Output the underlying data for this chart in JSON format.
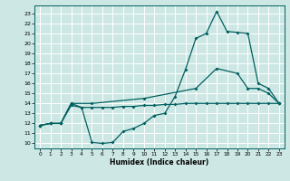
{
  "xlabel": "Humidex (Indice chaleur)",
  "bg_color": "#cde8e4",
  "grid_color": "#ffffff",
  "line_color": "#006060",
  "xlim": [
    -0.5,
    23.5
  ],
  "ylim": [
    9.5,
    23.8
  ],
  "yticks": [
    10,
    11,
    12,
    13,
    14,
    15,
    16,
    17,
    18,
    19,
    20,
    21,
    22,
    23
  ],
  "xticks": [
    0,
    1,
    2,
    3,
    4,
    5,
    6,
    7,
    8,
    9,
    10,
    11,
    12,
    13,
    14,
    15,
    16,
    17,
    18,
    19,
    20,
    21,
    22,
    23
  ],
  "line1_x": [
    0,
    1,
    2,
    3,
    4,
    5,
    6,
    7,
    8,
    9,
    10,
    11,
    12,
    13,
    14,
    15,
    16,
    17,
    18,
    19,
    20,
    21,
    22,
    23
  ],
  "line1_y": [
    11.8,
    12.0,
    12.0,
    13.8,
    13.6,
    10.1,
    10.0,
    10.1,
    11.2,
    11.5,
    12.0,
    12.8,
    13.0,
    14.7,
    17.4,
    20.5,
    21.0,
    23.2,
    21.2,
    21.1,
    21.0,
    16.0,
    15.5,
    14.0
  ],
  "line2_x": [
    0,
    1,
    2,
    3,
    4,
    5,
    6,
    7,
    8,
    9,
    10,
    11,
    12,
    13,
    14,
    15,
    16,
    17,
    18,
    19,
    20,
    21,
    22,
    23
  ],
  "line2_y": [
    11.8,
    12.0,
    12.0,
    14.0,
    13.6,
    13.6,
    13.6,
    13.6,
    13.7,
    13.7,
    13.8,
    13.8,
    13.9,
    13.9,
    14.0,
    14.0,
    14.0,
    14.0,
    14.0,
    14.0,
    14.0,
    14.0,
    14.0,
    14.0
  ],
  "line3_x": [
    0,
    1,
    2,
    3,
    5,
    10,
    15,
    17,
    19,
    20,
    21,
    22,
    23
  ],
  "line3_y": [
    11.8,
    12.0,
    12.0,
    14.0,
    14.0,
    14.5,
    15.5,
    17.5,
    17.0,
    15.5,
    15.5,
    15.0,
    14.0
  ]
}
